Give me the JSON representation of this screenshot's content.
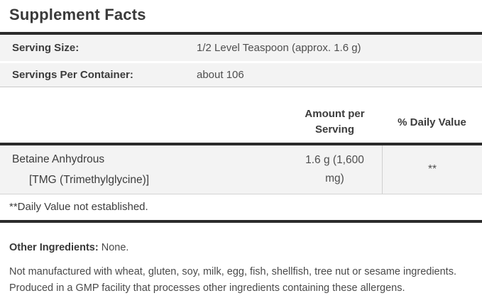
{
  "title": "Supplement Facts",
  "serving_info": {
    "rows": [
      {
        "label": "Serving Size:",
        "value": "1/2 Level Teaspoon (approx. 1.6 g)"
      },
      {
        "label": "Servings Per Container:",
        "value": "about 106"
      }
    ]
  },
  "nutrient_table": {
    "headers": {
      "amount": "Amount per Serving",
      "daily_value": "% Daily Value"
    },
    "rows": [
      {
        "name": "Betaine Anhydrous",
        "name_sub": "[TMG (Trimethylglycine)]",
        "amount": "1.6 g (1,600 mg)",
        "daily_value": "**"
      }
    ],
    "footnote": "**Daily Value not established."
  },
  "other_ingredients": {
    "label": "Other Ingredients:",
    "value": "None."
  },
  "allergen_statement": {
    "line1": "Not manufactured with wheat, gluten, soy, milk, egg, fish, shellfish, tree nut or sesame ingredients.",
    "line2": "Produced in a GMP facility that processes other ingredients containing these allergens."
  },
  "colors": {
    "bar": "#2b2b2b",
    "rowbg": "#f3f3f3",
    "thin": "#c9c9c9",
    "divider": "#cfcfcf",
    "ink": "#3c3c3c",
    "soft": "#4e4e4e",
    "para": "#4a4a4a"
  }
}
